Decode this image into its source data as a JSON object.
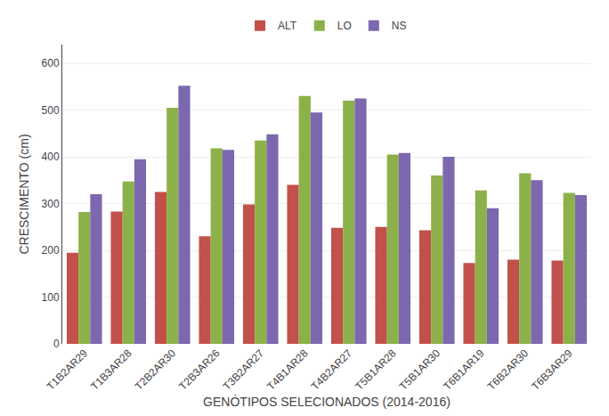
{
  "chart_data": {
    "type": "bar",
    "xlabel": "GENÓTIPOS SELECIONADOS (2014-2016)",
    "ylabel": "CRESCIMENTO (cm)",
    "categories": [
      "T1B2AR29",
      "T1B3AR28",
      "T2B2AR30",
      "T2B3AR26",
      "T3B2AR27",
      "T4B1AR28",
      "T4B2AR27",
      "T5B1AR28",
      "T5B1AR30",
      "T6B1AR19",
      "T6B2AR30",
      "T6B3AR29"
    ],
    "series": [
      {
        "name": "ALT",
        "color": "#C1514A",
        "values": [
          195,
          283,
          325,
          230,
          298,
          340,
          248,
          250,
          243,
          173,
          180,
          178
        ]
      },
      {
        "name": "LO",
        "color": "#8DB14A",
        "values": [
          282,
          347,
          505,
          418,
          435,
          530,
          520,
          405,
          360,
          328,
          365,
          323
        ]
      },
      {
        "name": "NS",
        "color": "#7B68AE",
        "values": [
          320,
          395,
          552,
          415,
          448,
          495,
          525,
          408,
          400,
          290,
          350,
          318
        ]
      }
    ],
    "ylim": [
      0,
      640
    ],
    "yticks": [
      0,
      100,
      200,
      300,
      400,
      500,
      600
    ],
    "grid": true,
    "legend": "top"
  }
}
